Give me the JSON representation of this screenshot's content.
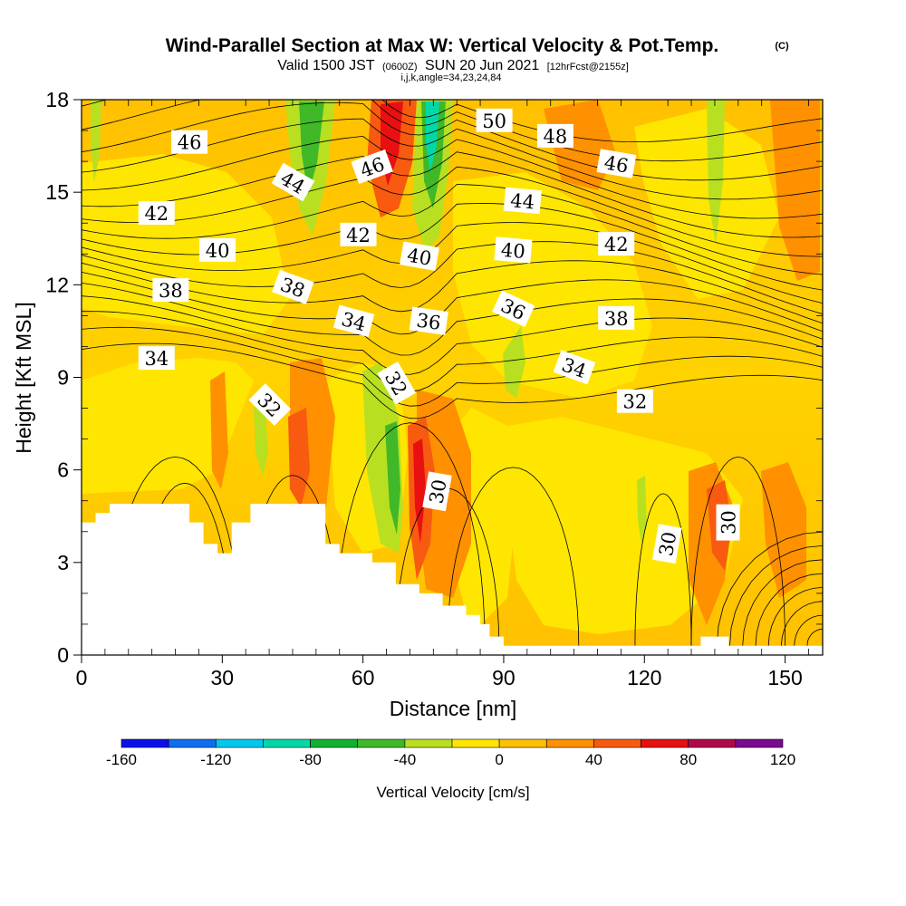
{
  "title": {
    "main": "Wind-Parallel Section at Max W: Vertical Velocity & Pot.Temp.",
    "main_suffix": "(C)",
    "valid_prefix": "Valid 1500 JST",
    "valid_z": "(0600Z)",
    "valid_date": "SUN 20 Jun 2021",
    "forecast": "[12hrFcst@2155z]",
    "params": "i,j,k,angle=34,23,24,84"
  },
  "chart_data": {
    "type": "heatmap",
    "xlabel": "Distance [nm]",
    "ylabel": "Height [Kft MSL]",
    "xlim": [
      0,
      158
    ],
    "ylim": [
      0,
      18
    ],
    "x_ticks": [
      0,
      30,
      60,
      90,
      120,
      150
    ],
    "y_ticks": [
      0,
      3,
      6,
      9,
      12,
      15,
      18
    ],
    "fill_variable": "Vertical Velocity [cm/s]",
    "colorbar": {
      "label": "Vertical Velocity [cm/s]",
      "tick_values": [
        -160,
        -120,
        -80,
        -40,
        0,
        40,
        80,
        120
      ],
      "tick_labels": [
        "-160",
        "-120",
        "-80",
        "-40",
        "0",
        "40",
        "80",
        "120"
      ],
      "levels": [
        -160,
        -140,
        -120,
        -100,
        -80,
        -60,
        -40,
        -20,
        0,
        20,
        40,
        60,
        80,
        100,
        120
      ],
      "colors": [
        "#0b10e8",
        "#0f6ef0",
        "#00c8f0",
        "#00d8a8",
        "#10b030",
        "#40b828",
        "#b8e020",
        "#ffe600",
        "#ffc000",
        "#ff9000",
        "#f85a10",
        "#e81010",
        "#b00848",
        "#7a0a90"
      ]
    },
    "contour_variable": "Potential temperature (C)",
    "contour_levels": [
      30,
      31,
      32,
      33,
      34,
      35,
      36,
      37,
      38,
      39,
      40,
      41,
      42,
      43,
      44,
      45,
      46,
      47,
      48,
      49,
      50
    ],
    "contour_labels": [
      {
        "text": "46",
        "x": 23,
        "y": 16.6
      },
      {
        "text": "44",
        "x": 45,
        "y": 15.3,
        "angle": 30
      },
      {
        "text": "46",
        "x": 62,
        "y": 15.8,
        "angle": -20
      },
      {
        "text": "50",
        "x": 88,
        "y": 17.3
      },
      {
        "text": "48",
        "x": 101,
        "y": 16.8
      },
      {
        "text": "46",
        "x": 114,
        "y": 15.9,
        "angle": 10
      },
      {
        "text": "42",
        "x": 16,
        "y": 14.3
      },
      {
        "text": "44",
        "x": 94,
        "y": 14.7,
        "angle": 5
      },
      {
        "text": "40",
        "x": 29,
        "y": 13.1
      },
      {
        "text": "42",
        "x": 59,
        "y": 13.6
      },
      {
        "text": "40",
        "x": 72,
        "y": 12.9,
        "angle": 10
      },
      {
        "text": "40",
        "x": 92,
        "y": 13.1,
        "angle": 5
      },
      {
        "text": "42",
        "x": 114,
        "y": 13.3
      },
      {
        "text": "38",
        "x": 19,
        "y": 11.8
      },
      {
        "text": "38",
        "x": 45,
        "y": 11.9,
        "angle": 20
      },
      {
        "text": "34",
        "x": 58,
        "y": 10.8,
        "angle": 15
      },
      {
        "text": "36",
        "x": 74,
        "y": 10.8,
        "angle": 8
      },
      {
        "text": "36",
        "x": 92,
        "y": 11.2,
        "angle": 25
      },
      {
        "text": "38",
        "x": 114,
        "y": 10.9
      },
      {
        "text": "34",
        "x": 16,
        "y": 9.6
      },
      {
        "text": "34",
        "x": 105,
        "y": 9.3,
        "angle": 20
      },
      {
        "text": "32",
        "x": 40,
        "y": 8.1,
        "angle": 45
      },
      {
        "text": "32",
        "x": 67,
        "y": 8.8,
        "angle": 60
      },
      {
        "text": "32",
        "x": 118,
        "y": 8.2
      },
      {
        "text": "30",
        "x": 76,
        "y": 5.3,
        "angle": -80
      },
      {
        "text": "30",
        "x": 125,
        "y": 3.6,
        "angle": -80
      },
      {
        "text": "30",
        "x": 138,
        "y": 4.3,
        "angle": -90
      }
    ],
    "terrain": [
      [
        0,
        4.3
      ],
      [
        3,
        4.3
      ],
      [
        3,
        4.6
      ],
      [
        6,
        4.6
      ],
      [
        6,
        4.9
      ],
      [
        23,
        4.9
      ],
      [
        23,
        4.3
      ],
      [
        26,
        4.3
      ],
      [
        26,
        3.6
      ],
      [
        29,
        3.6
      ],
      [
        29,
        3.3
      ],
      [
        32,
        3.3
      ],
      [
        32,
        4.3
      ],
      [
        36,
        4.3
      ],
      [
        36,
        4.9
      ],
      [
        52,
        4.9
      ],
      [
        52,
        3.6
      ],
      [
        55,
        3.6
      ],
      [
        55,
        3.3
      ],
      [
        62,
        3.3
      ],
      [
        62,
        3.0
      ],
      [
        67,
        3.0
      ],
      [
        67,
        2.3
      ],
      [
        72,
        2.3
      ],
      [
        72,
        2.0
      ],
      [
        77,
        2.0
      ],
      [
        77,
        1.6
      ],
      [
        82,
        1.6
      ],
      [
        82,
        1.3
      ],
      [
        85,
        1.3
      ],
      [
        85,
        1.0
      ],
      [
        87,
        1.0
      ],
      [
        87,
        0.6
      ],
      [
        90,
        0.6
      ],
      [
        90,
        0.3
      ],
      [
        132,
        0.3
      ],
      [
        132,
        0.6
      ],
      [
        138,
        0.6
      ],
      [
        138,
        0.3
      ],
      [
        158,
        0.3
      ],
      [
        158,
        0
      ],
      [
        0,
        0
      ]
    ]
  }
}
